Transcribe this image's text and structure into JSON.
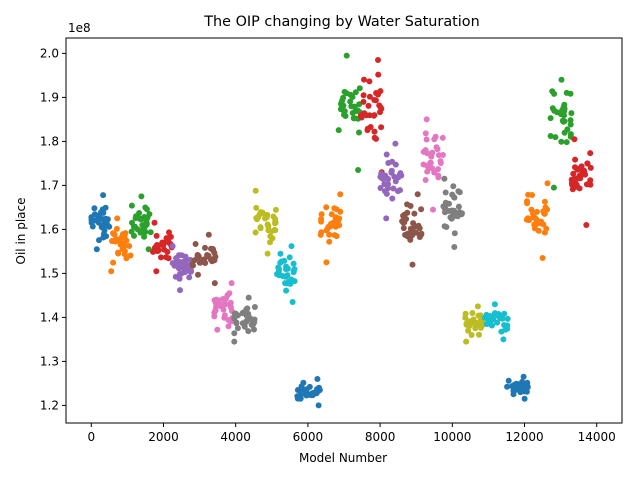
{
  "chart_data": {
    "type": "scatter",
    "title": "The OIP changing by Water Saturation",
    "xlabel": "Model Number",
    "ylabel": "Oil in place",
    "y_multiplier_label": "1e8",
    "xlim": [
      -700,
      14700
    ],
    "ylim": [
      1.16,
      2.035
    ],
    "x_ticks": [
      0,
      2000,
      4000,
      6000,
      8000,
      10000,
      12000,
      14000
    ],
    "x_tick_labels": [
      "0",
      "2000",
      "4000",
      "6000",
      "8000",
      "10000",
      "12000",
      "14000"
    ],
    "y_ticks": [
      1.2,
      1.3,
      1.4,
      1.5,
      1.6,
      1.7,
      1.8,
      1.9,
      2.0
    ],
    "y_tick_labels": [
      "1.2",
      "1.3",
      "1.4",
      "1.5",
      "1.6",
      "1.7",
      "1.8",
      "1.9",
      "2.0"
    ],
    "grid": false,
    "marker": "circle",
    "series": [
      {
        "color": "#1f77b4",
        "x_range": [
          0,
          500
        ],
        "y_center": 1.615,
        "y_min": 1.555,
        "y_max": 1.678,
        "count": 32
      },
      {
        "color": "#ff7f0e",
        "x_range": [
          550,
          1100
        ],
        "y_center": 1.565,
        "y_min": 1.505,
        "y_max": 1.625,
        "count": 32
      },
      {
        "color": "#2ca02c",
        "x_range": [
          1100,
          1650
        ],
        "y_center": 1.615,
        "y_min": 1.555,
        "y_max": 1.675,
        "count": 32
      },
      {
        "color": "#d62728",
        "x_range": [
          1700,
          2250
        ],
        "y_center": 1.565,
        "y_min": 1.505,
        "y_max": 1.615,
        "count": 32
      },
      {
        "color": "#9467bd",
        "x_range": [
          2250,
          2800
        ],
        "y_center": 1.515,
        "y_min": 1.462,
        "y_max": 1.562,
        "count": 32
      },
      {
        "color": "#8c564b",
        "x_range": [
          2800,
          3450
        ],
        "y_center": 1.535,
        "y_min": 1.478,
        "y_max": 1.588,
        "count": 32
      },
      {
        "color": "#e377c2",
        "x_range": [
          3400,
          3950
        ],
        "y_center": 1.425,
        "y_min": 1.372,
        "y_max": 1.478,
        "count": 32
      },
      {
        "color": "#7f7f7f",
        "x_range": [
          3950,
          4550
        ],
        "y_center": 1.395,
        "y_min": 1.345,
        "y_max": 1.445,
        "count": 32
      },
      {
        "color": "#bcbd22",
        "x_range": [
          4550,
          5150
        ],
        "y_center": 1.615,
        "y_min": 1.545,
        "y_max": 1.688,
        "count": 32
      },
      {
        "color": "#17becf",
        "x_range": [
          5100,
          5650
        ],
        "y_center": 1.505,
        "y_min": 1.435,
        "y_max": 1.562,
        "count": 32
      },
      {
        "color": "#1f77b4",
        "x_range": [
          5700,
          6350
        ],
        "y_center": 1.23,
        "y_min": 1.2,
        "y_max": 1.26,
        "count": 32
      },
      {
        "color": "#ff7f0e",
        "x_range": [
          6300,
          6900
        ],
        "y_center": 1.61,
        "y_min": 1.525,
        "y_max": 1.68,
        "count": 32
      },
      {
        "color": "#2ca02c",
        "x_range": [
          6850,
          7450
        ],
        "y_center": 1.89,
        "y_min": 1.735,
        "y_max": 1.995,
        "count": 32
      },
      {
        "color": "#d62728",
        "x_range": [
          7450,
          8050
        ],
        "y_center": 1.875,
        "y_min": 1.73,
        "y_max": 1.985,
        "count": 32
      },
      {
        "color": "#9467bd",
        "x_range": [
          8000,
          8600
        ],
        "y_center": 1.715,
        "y_min": 1.625,
        "y_max": 1.795,
        "count": 32
      },
      {
        "color": "#8c564b",
        "x_range": [
          8600,
          9150
        ],
        "y_center": 1.61,
        "y_min": 1.52,
        "y_max": 1.68,
        "count": 32
      },
      {
        "color": "#e377c2",
        "x_range": [
          9200,
          9750
        ],
        "y_center": 1.76,
        "y_min": 1.645,
        "y_max": 1.85,
        "count": 32
      },
      {
        "color": "#7f7f7f",
        "x_range": [
          9750,
          10350
        ],
        "y_center": 1.64,
        "y_min": 1.56,
        "y_max": 1.715,
        "count": 32
      },
      {
        "color": "#bcbd22",
        "x_range": [
          10350,
          10900
        ],
        "y_center": 1.385,
        "y_min": 1.345,
        "y_max": 1.425,
        "count": 32
      },
      {
        "color": "#17becf",
        "x_range": [
          10900,
          11550
        ],
        "y_center": 1.39,
        "y_min": 1.35,
        "y_max": 1.43,
        "count": 32
      },
      {
        "color": "#1f77b4",
        "x_range": [
          11500,
          12100
        ],
        "y_center": 1.24,
        "y_min": 1.215,
        "y_max": 1.265,
        "count": 32
      },
      {
        "color": "#ff7f0e",
        "x_range": [
          12050,
          12650
        ],
        "y_center": 1.625,
        "y_min": 1.535,
        "y_max": 1.705,
        "count": 32
      },
      {
        "color": "#2ca02c",
        "x_range": [
          12700,
          13300
        ],
        "y_center": 1.845,
        "y_min": 1.695,
        "y_max": 1.94,
        "count": 32
      },
      {
        "color": "#d62728",
        "x_range": [
          13300,
          13850
        ],
        "y_center": 1.725,
        "y_min": 1.61,
        "y_max": 1.805,
        "count": 32
      }
    ]
  }
}
